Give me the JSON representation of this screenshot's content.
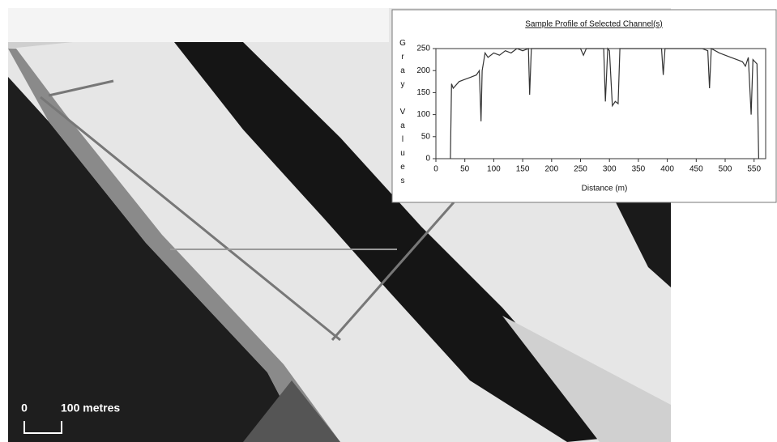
{
  "scale_bar": {
    "start": "0",
    "label": "100 metres"
  },
  "chart_data": {
    "type": "line",
    "title": "Sample Profile of Selected Channel(s)",
    "x_label": "Distance (m)",
    "y_label": "Gray Values",
    "x": [
      25,
      27,
      30,
      40,
      50,
      60,
      70,
      75,
      78,
      80,
      85,
      90,
      100,
      110,
      120,
      130,
      140,
      150,
      160,
      162,
      165,
      200,
      250,
      255,
      260,
      290,
      293,
      297,
      300,
      305,
      310,
      315,
      318,
      350,
      390,
      393,
      396,
      460,
      470,
      473,
      476,
      490,
      500,
      510,
      520,
      530,
      535,
      540,
      545,
      548,
      555,
      558
    ],
    "series": [
      {
        "name": "Gray Values",
        "color": "#333333",
        "values": [
          0,
          170,
          160,
          175,
          180,
          185,
          190,
          200,
          85,
          200,
          240,
          230,
          240,
          235,
          245,
          240,
          250,
          245,
          250,
          145,
          250,
          250,
          250,
          235,
          250,
          250,
          130,
          250,
          245,
          120,
          130,
          125,
          250,
          250,
          250,
          190,
          250,
          250,
          245,
          160,
          250,
          240,
          235,
          230,
          225,
          220,
          210,
          230,
          100,
          225,
          215,
          0
        ]
      }
    ],
    "xlim": [
      0,
      570
    ],
    "xticks": [
      0,
      50,
      100,
      150,
      200,
      250,
      300,
      350,
      400,
      450,
      500,
      550
    ],
    "ylim": [
      0,
      250
    ],
    "yticks": [
      0,
      50,
      100,
      150,
      200,
      250
    ]
  }
}
